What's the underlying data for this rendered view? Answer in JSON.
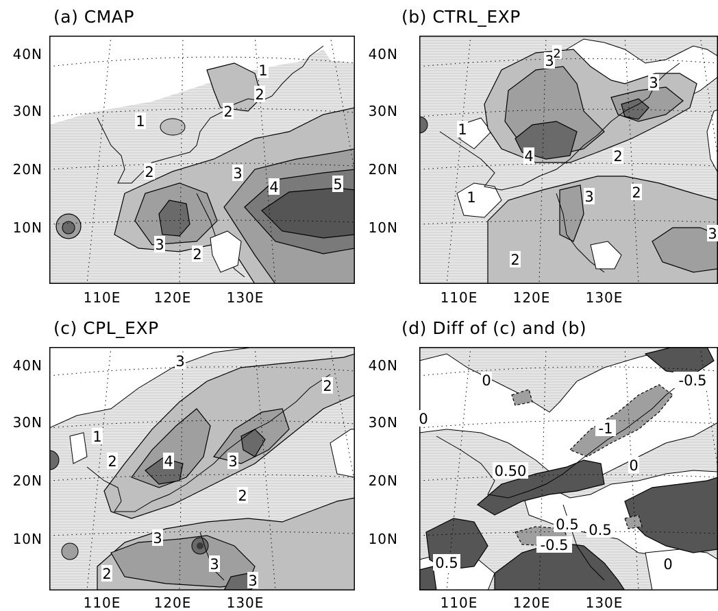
{
  "panels": [
    {
      "id": "a",
      "title": "(a) CMAP",
      "y_ticks": [
        "40N",
        "30N",
        "20N",
        "10N"
      ],
      "x_ticks": [
        "110E",
        "120E",
        "130E"
      ],
      "contour_labels": [
        "1",
        "2",
        "1",
        "2",
        "2",
        "3",
        "4",
        "5",
        "3",
        "2"
      ]
    },
    {
      "id": "b",
      "title": "(b) CTRL_EXP",
      "y_ticks": [
        "40N",
        "30N",
        "20N",
        "10N"
      ],
      "x_ticks": [
        "110E",
        "120E",
        "130E"
      ],
      "contour_labels": [
        "3",
        "2",
        "3",
        "1",
        "4",
        "2",
        "1",
        "3",
        "2",
        "3",
        "2"
      ]
    },
    {
      "id": "c",
      "title": "(c) CPL_EXP",
      "y_ticks": [
        "40N",
        "30N",
        "20N",
        "10N"
      ],
      "x_ticks": [
        "110E",
        "120E",
        "130E"
      ],
      "contour_labels": [
        "3",
        "2",
        "1",
        "2",
        "4",
        "3",
        "2",
        "3",
        "3",
        "2",
        "3"
      ]
    },
    {
      "id": "d",
      "title": "(d) Diff of (c) and (b)",
      "y_ticks": [
        "40N",
        "30N",
        "20N",
        "10N"
      ],
      "x_ticks": [
        "110E",
        "120E",
        "130E"
      ],
      "contour_labels": [
        "0",
        "0",
        "-0.5",
        "-1",
        "0.50",
        "0",
        "0.5",
        "0.5",
        "-0.5",
        "0.5",
        "0"
      ]
    }
  ]
}
